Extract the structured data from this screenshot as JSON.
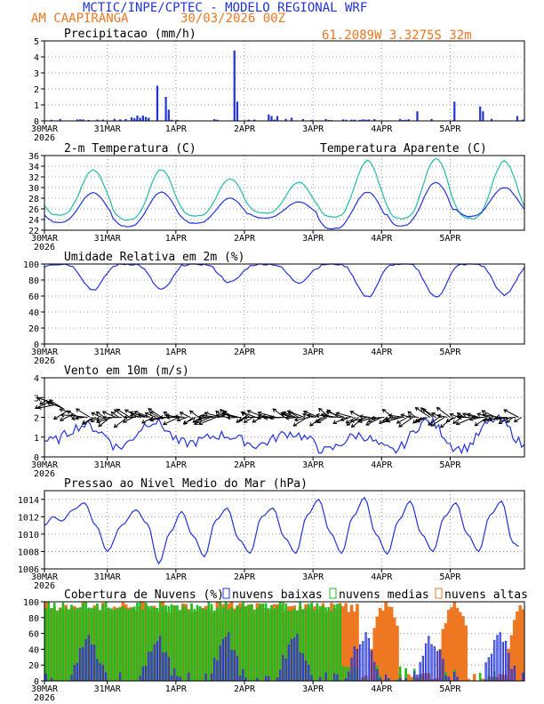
{
  "header": {
    "title": "MCTIC/INPE/CPTEC - MODELO REGIONAL WRF",
    "location": "AM CAAPIRANGA",
    "run": "30/03/2026 00Z",
    "coords": "61.2089W 3.3275S 32m"
  },
  "colors": {
    "blue": "#2233dd",
    "orange": "#ee7722",
    "cyan": "#22bbaa",
    "green": "#22bb22",
    "black": "#000000"
  },
  "x_dates": [
    "30MAR",
    "31MAR",
    "1APR",
    "2APR",
    "3APR",
    "4APR",
    "5APR"
  ],
  "x_year": "2026",
  "chart_data": [
    {
      "type": "bar",
      "title": "Precipitacao (mm/h)",
      "ylim": [
        0,
        5
      ],
      "yticks": [
        0,
        1,
        2,
        3,
        4,
        5
      ],
      "x_hours": [
        0,
        6,
        12,
        18,
        24,
        30,
        36,
        42,
        48,
        54,
        60,
        66,
        72,
        78,
        84,
        90,
        96,
        102,
        108,
        114,
        120,
        126,
        132,
        138,
        144,
        150,
        156
      ],
      "values": [
        0.1,
        0,
        0,
        0,
        0.1,
        0.1,
        0.3,
        0.4,
        0.1,
        0.1,
        0,
        0.1,
        0,
        0,
        0.1,
        0,
        0.05,
        0.05,
        0.05,
        0.05,
        0.1,
        0.1,
        0.05,
        0.05,
        0.1,
        0.05,
        0.05
      ],
      "peaks": [
        {
          "x": 39,
          "value": 2.2
        },
        {
          "x": 42,
          "value": 1.5
        },
        {
          "x": 43,
          "value": 0.7
        },
        {
          "x": 66,
          "value": 4.4
        },
        {
          "x": 67,
          "value": 1.2
        },
        {
          "x": 78,
          "value": 0.4
        },
        {
          "x": 79,
          "value": 0.3
        },
        {
          "x": 81,
          "value": 0.3
        },
        {
          "x": 86,
          "value": 0.2
        },
        {
          "x": 130,
          "value": 0.6
        },
        {
          "x": 143,
          "value": 1.2
        },
        {
          "x": 152,
          "value": 0.9
        },
        {
          "x": 153,
          "value": 0.6
        },
        {
          "x": 165,
          "value": 0.3
        }
      ]
    },
    {
      "type": "line",
      "title": "2-m Temperatura (C)",
      "title2": "Temperatura Aparente (C)",
      "ylim": [
        22,
        36
      ],
      "yticks": [
        22,
        24,
        26,
        28,
        30,
        32,
        34,
        36
      ],
      "series": [
        {
          "name": "2-m Temperatura (C)",
          "color": "#2233dd",
          "min": [
            23.5,
            22.7,
            23.3,
            24.3,
            22.3,
            22.8,
            24.6
          ],
          "max": [
            29.0,
            29.2,
            28.0,
            27.3,
            29.2,
            31.0,
            30.0
          ]
        },
        {
          "name": "Temperatura Aparente (C)",
          "color": "#22bbaa",
          "min": [
            24.9,
            24.0,
            24.7,
            25.2,
            24.4,
            24.2,
            24.2
          ],
          "max": [
            33.3,
            33.4,
            31.7,
            31.0,
            35.0,
            35.5,
            35.0
          ]
        }
      ]
    },
    {
      "type": "line",
      "title": "Umidade Relativa em 2m (%)",
      "ylim": [
        0,
        100
      ],
      "yticks": [
        0,
        20,
        40,
        60,
        80,
        100
      ],
      "series": [
        {
          "name": "Umidade Relativa",
          "color": "#2233dd",
          "min": [
            72,
            72,
            80,
            80,
            64,
            64,
            66
          ],
          "max": [
            100,
            100,
            100,
            100,
            100,
            100,
            100
          ]
        }
      ]
    },
    {
      "type": "line",
      "title": "Vento em 10m (m/s)",
      "ylim": [
        0,
        4
      ],
      "yticks": [
        0,
        1,
        2,
        3,
        4
      ],
      "series": [
        {
          "name": "Vento",
          "color": "#2233dd",
          "min": [
            0.8,
            0.5,
            0.7,
            0.6,
            0.3,
            0.3,
            0.4
          ],
          "max": [
            1.6,
            1.8,
            1.1,
            1.2,
            1.1,
            1.8,
            1.9
          ]
        }
      ],
      "barbs": "wind direction arrows along 2 m/s"
    },
    {
      "type": "line",
      "title": "Pressao ao Nivel Medio do Mar (hPa)",
      "ylim": [
        1006,
        1015
      ],
      "yticks": [
        1006,
        1008,
        1010,
        1012,
        1014
      ],
      "series": [
        {
          "name": "Pressao",
          "color": "#2233dd",
          "x_hours": [
            0,
            3,
            6,
            10,
            14,
            18,
            22,
            27,
            32,
            36,
            40,
            44,
            48,
            52,
            56,
            60,
            64,
            68,
            72,
            76,
            80,
            84,
            88,
            92,
            96,
            100,
            104,
            108,
            112,
            116,
            120,
            124,
            128,
            132,
            136,
            140,
            144,
            148,
            152,
            156,
            160,
            164,
            166
          ],
          "values": [
            1011,
            1012,
            1011.5,
            1012.8,
            1013.6,
            1011,
            1008,
            1011,
            1012.8,
            1011.2,
            1006.6,
            1010.2,
            1012.6,
            1009.8,
            1007.4,
            1011.6,
            1013,
            1009.4,
            1007.8,
            1012,
            1013,
            1009.6,
            1007.8,
            1012.2,
            1014,
            1010.2,
            1007.8,
            1012,
            1014.2,
            1010,
            1007.7,
            1011.6,
            1013.8,
            1010,
            1008,
            1012,
            1013.6,
            1010,
            1008,
            1012.2,
            1013.8,
            1009,
            1008.6
          ]
        }
      ]
    },
    {
      "type": "bar",
      "title": "Cobertura de Nuvens (%)",
      "ylim": [
        0,
        100
      ],
      "yticks": [
        0,
        20,
        40,
        60,
        80,
        100
      ],
      "legend": [
        "nuvens baixas",
        "nuvens medias",
        "nuvens altas"
      ],
      "series": [
        {
          "name": "nuvens baixas",
          "color": "#2233dd",
          "profile": "peaks 60-70 near midday and late afternoon"
        },
        {
          "name": "nuvens medias",
          "color": "#22bb22",
          "profile": "~100 from 30MAR to 3APR, low after"
        },
        {
          "name": "nuvens altas",
          "color": "#ee7722",
          "profile": "~100 first days, large bursts 4APR-5APR"
        }
      ]
    }
  ]
}
